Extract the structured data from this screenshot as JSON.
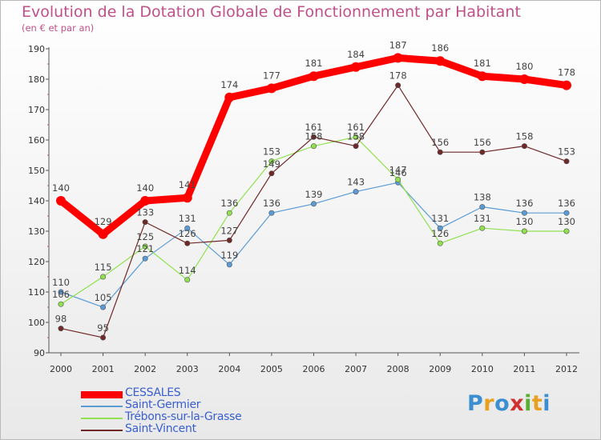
{
  "title": "Evolution de la Dotation Globale de Fonctionnement par Habitant",
  "subtitle": "(en € et par an)",
  "logo_text": "Proxiti",
  "chart_data": {
    "type": "line",
    "title": "Evolution de la Dotation Globale de Fonctionnement par Habitant",
    "subtitle": "(en € et par an)",
    "xlabel": "",
    "ylabel": "",
    "x": [
      "2000",
      "2001",
      "2002",
      "2003",
      "2004",
      "2005",
      "2006",
      "2007",
      "2008",
      "2009",
      "2010",
      "2011",
      "2012"
    ],
    "ylim": [
      90,
      190
    ],
    "yticks": [
      90,
      100,
      110,
      120,
      130,
      140,
      150,
      160,
      170,
      180,
      190
    ],
    "grid": false,
    "legend_position": "bottom-left",
    "series": [
      {
        "name": "CESSALES",
        "color": "#ff0000",
        "values": [
          140,
          129,
          140,
          141,
          174,
          177,
          181,
          184,
          187,
          186,
          181,
          180,
          178
        ]
      },
      {
        "name": "Saint-Germier",
        "color": "#5b9bd5",
        "values": [
          110,
          105,
          121,
          131,
          119,
          136,
          139,
          143,
          146,
          131,
          138,
          136,
          136
        ]
      },
      {
        "name": "Trébons-sur-la-Grasse",
        "color": "#90e050",
        "values": [
          106,
          115,
          125,
          114,
          136,
          153,
          158,
          161,
          147,
          126,
          131,
          130,
          130
        ]
      },
      {
        "name": "Saint-Vincent",
        "color": "#702828",
        "values": [
          98,
          95,
          133,
          126,
          127,
          149,
          161,
          158,
          178,
          156,
          156,
          158,
          153
        ]
      }
    ]
  }
}
